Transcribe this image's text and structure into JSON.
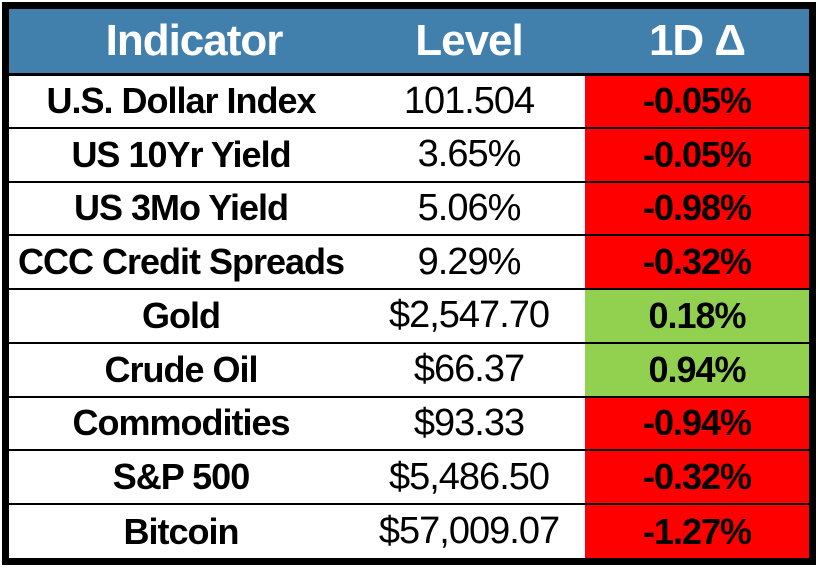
{
  "chart_data": {
    "type": "table",
    "columns": [
      "Indicator",
      "Level",
      "1D Δ"
    ],
    "rows": [
      {
        "indicator": "U.S. Dollar Index",
        "level": "101.504",
        "delta": "-0.05%",
        "direction": "down"
      },
      {
        "indicator": "US 10Yr Yield",
        "level": "3.65%",
        "delta": "-0.05%",
        "direction": "down"
      },
      {
        "indicator": "US 3Mo Yield",
        "level": "5.06%",
        "delta": "-0.98%",
        "direction": "down"
      },
      {
        "indicator": "CCC Credit Spreads",
        "level": "9.29%",
        "delta": "-0.32%",
        "direction": "down"
      },
      {
        "indicator": "Gold",
        "level": "$2,547.70",
        "delta": "0.18%",
        "direction": "up"
      },
      {
        "indicator": "Crude Oil",
        "level": "$66.37",
        "delta": "0.94%",
        "direction": "up"
      },
      {
        "indicator": "Commodities",
        "level": "$93.33",
        "delta": "-0.94%",
        "direction": "down"
      },
      {
        "indicator": "S&P 500",
        "level": "$5,486.50",
        "delta": "-0.32%",
        "direction": "down"
      },
      {
        "indicator": "Bitcoin",
        "level": "$57,009.07",
        "delta": "-1.27%",
        "direction": "down"
      }
    ],
    "colors": {
      "header_bg": "#4180AC",
      "header_text": "#FFFFFF",
      "negative_bg": "#FF0000",
      "positive_bg": "#92D050",
      "border": "#000000",
      "text": "#000000"
    }
  }
}
